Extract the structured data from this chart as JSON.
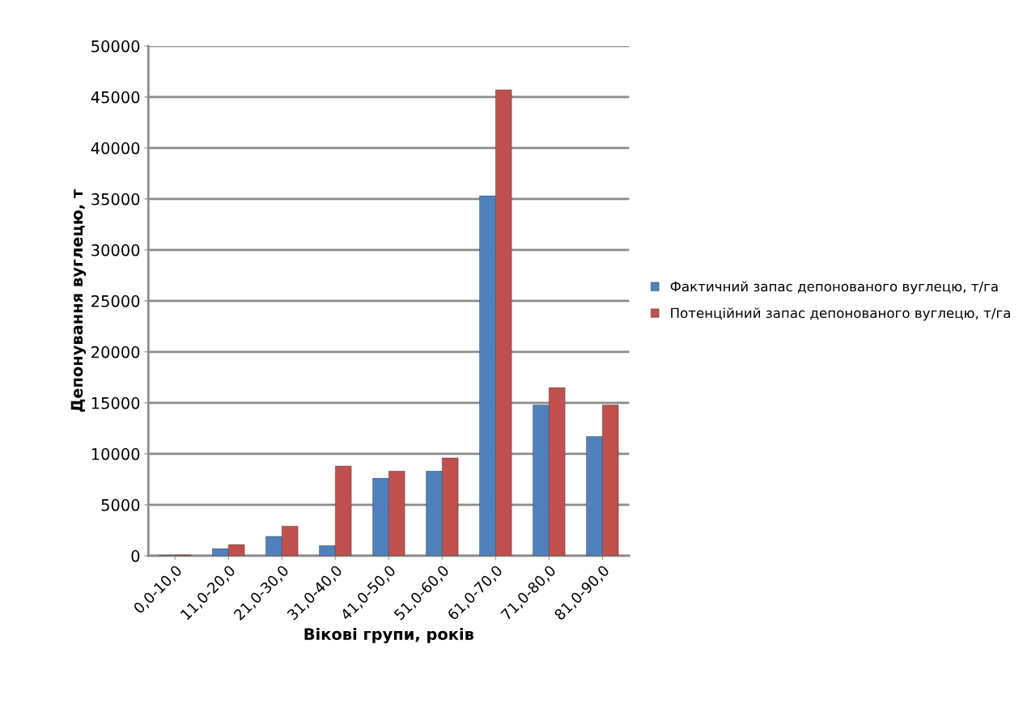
{
  "chart_data": {
    "type": "bar",
    "xlabel": "Вікові групи, років",
    "ylabel": "Депонування вуглецю, т",
    "categories": [
      "0,0-10,0",
      "11,0-20,0",
      "21,0-30,0",
      "31,0-40,0",
      "41,0-50,0",
      "51,0-60,0",
      "61,0-70,0",
      "71,0-80,0",
      "81,0-90,0"
    ],
    "series": [
      {
        "name": "Фактичний запас депонованого вуглецю, т/га",
        "color": "#4f81bd",
        "values": [
          50,
          700,
          1900,
          1000,
          7600,
          8300,
          35300,
          14800,
          11700
        ]
      },
      {
        "name": "Потенційний запас депонованого вуглецю, т/га",
        "color": "#c0504d",
        "values": [
          80,
          1100,
          2900,
          8800,
          8300,
          9600,
          45700,
          16500,
          14800
        ]
      }
    ],
    "ylim": [
      0,
      50000
    ],
    "yticks": [
      0,
      5000,
      10000,
      15000,
      20000,
      25000,
      30000,
      35000,
      40000,
      45000,
      50000
    ],
    "grid": "y",
    "legend": "right"
  }
}
